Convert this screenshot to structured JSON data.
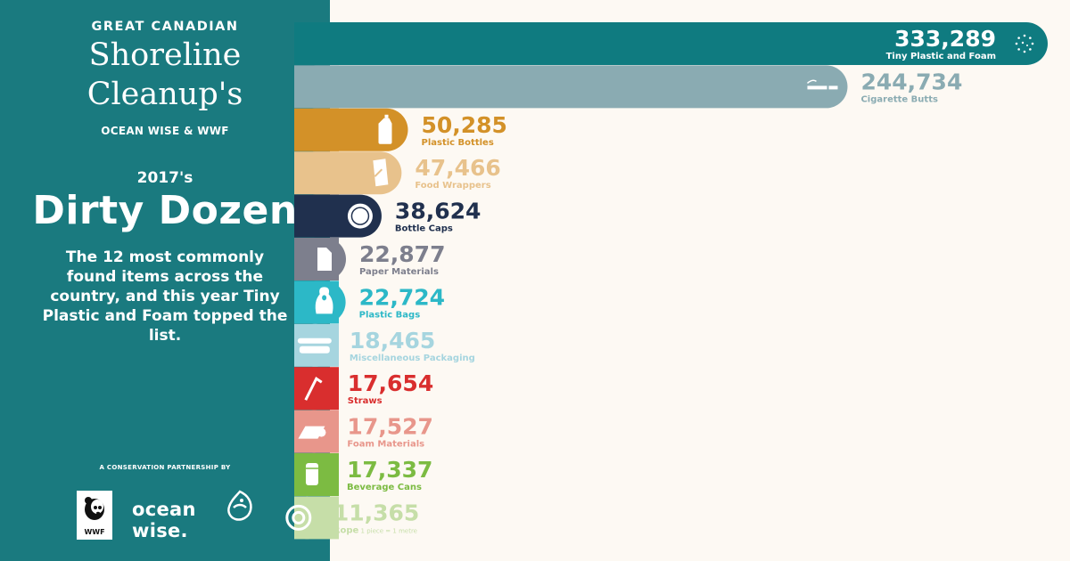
{
  "header": {
    "brand_line": "GREAT CANADIAN",
    "brand_script_1": "Shoreline",
    "brand_script_2": "Cleanup's",
    "brand_sub": "OCEAN WISE & WWF",
    "year": "2017's",
    "headline": "Dirty Dozen",
    "intro": "The 12 most commonly found items across the country, and this year Tiny Plastic and Foam topped the list."
  },
  "footer": {
    "partner_text": "A CONSERVATION PARTNERSHIP BY",
    "wwf_text": "WWF",
    "oceanwise_text": "ocean wise."
  },
  "chart_data": {
    "type": "bar",
    "orientation": "horizontal",
    "categories": [
      "Tiny Plastic and Foam",
      "Cigarette Butts",
      "Plastic Bottles",
      "Food Wrappers",
      "Bottle Caps",
      "Paper Materials",
      "Plastic Bags",
      "Miscellaneous Packaging",
      "Straws",
      "Foam Materials",
      "Beverage Cans",
      "Rope"
    ],
    "values": [
      333289,
      244734,
      50285,
      47466,
      38624,
      22877,
      22724,
      18465,
      17654,
      17527,
      17337,
      11365
    ],
    "value_labels": [
      "333,289",
      "244,734",
      "50,285",
      "47,466",
      "38,624",
      "22,877",
      "22,724",
      "18,465",
      "17,654",
      "17,527",
      "17,337",
      "11,365"
    ],
    "label_notes": [
      "",
      "",
      "",
      "",
      "",
      "",
      "",
      "",
      "",
      "",
      "",
      "1 piece = 1 metre"
    ],
    "colors": [
      "#0f7b80",
      "#8aabb2",
      "#d39128",
      "#e8c28c",
      "#20304e",
      "#7d7f8d",
      "#2cb8c7",
      "#a6d5df",
      "#d92e2e",
      "#e8968b",
      "#7cbb42",
      "#c6dea8"
    ],
    "icons": [
      "sparkle-icon",
      "cigarette-icon",
      "bottle-icon",
      "wrapper-icon",
      "bottle-cap-icon",
      "paper-icon",
      "bag-icon",
      "takeout-box-icon",
      "straw-icon",
      "foam-icon",
      "can-icon",
      "rope-icon"
    ]
  }
}
